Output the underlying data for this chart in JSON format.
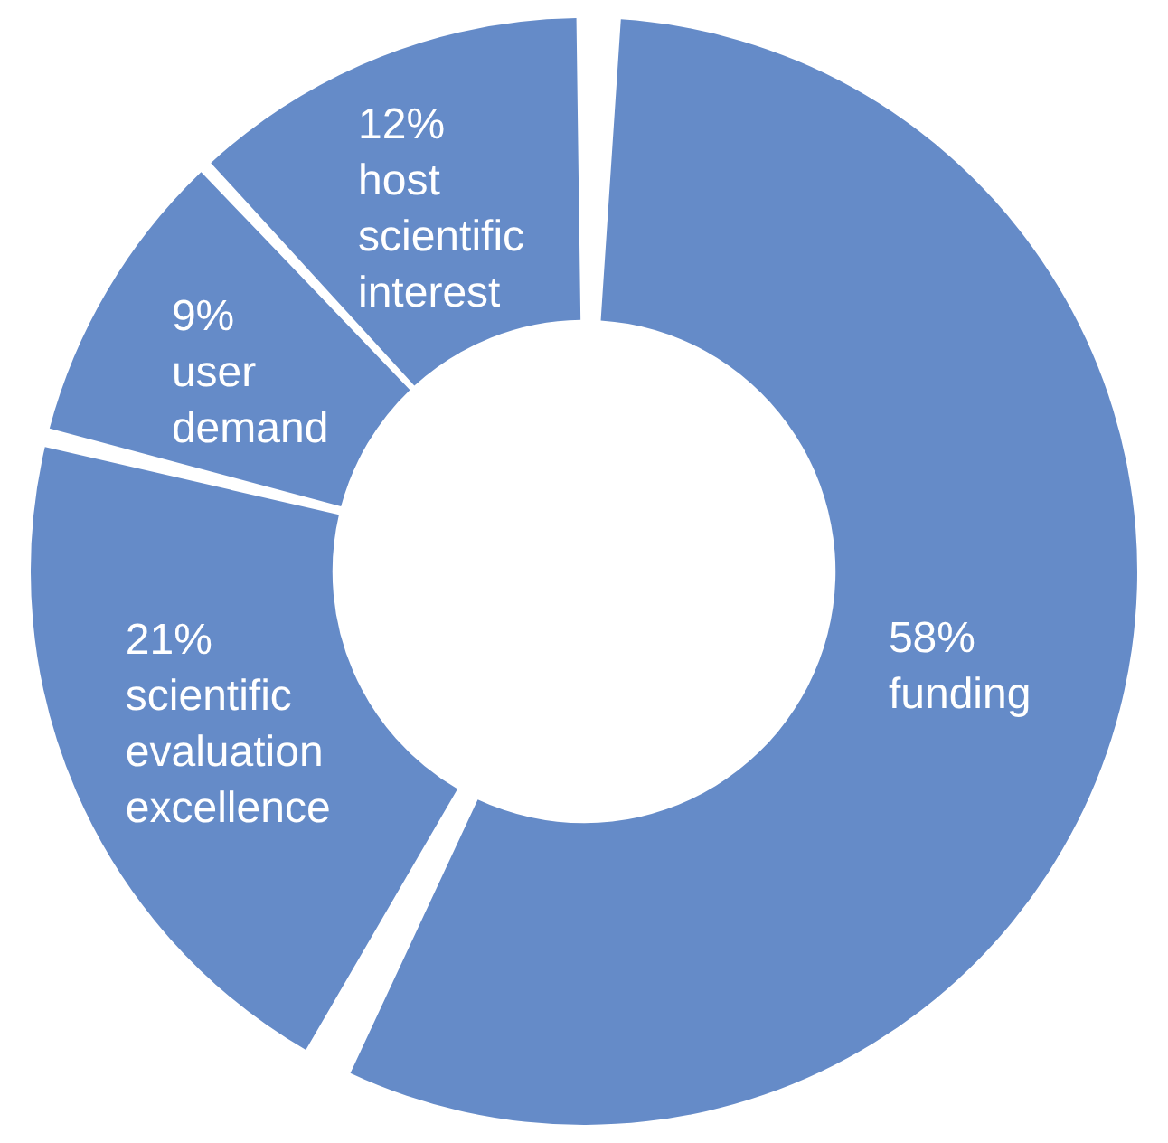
{
  "chart_data": {
    "type": "donut",
    "categories": [
      "funding",
      "scientific evaluation excellence",
      "user demand",
      "host scientific interest"
    ],
    "values": [
      58,
      21,
      9,
      12
    ],
    "value_labels": [
      "58%",
      "21%",
      "9%",
      "12%"
    ],
    "colors": [
      "#658bc8",
      "#658bc8",
      "#658bc8",
      "#658bc8"
    ],
    "legend": false
  }
}
